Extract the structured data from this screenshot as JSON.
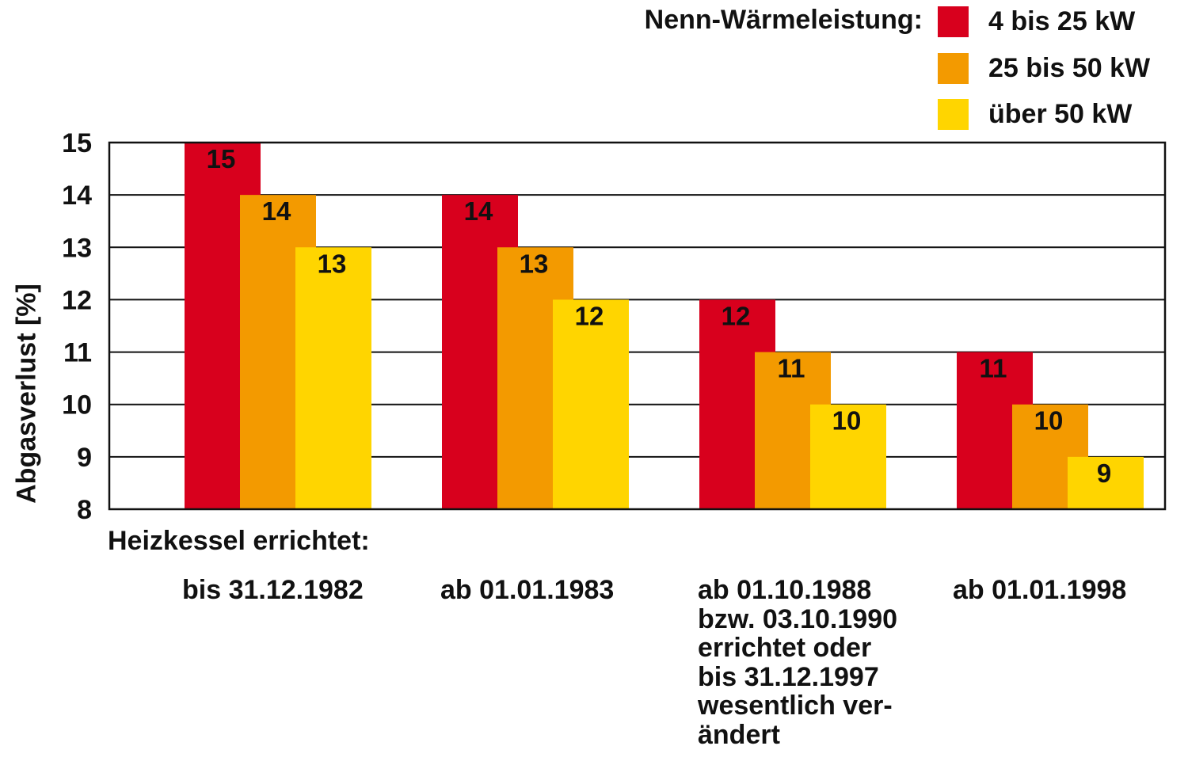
{
  "chart_data": {
    "type": "bar",
    "legend_title": "Nenn-Wärmeleistung:",
    "xlabel": "Heizkessel errichtet:",
    "ylabel": "Abgasverlust [%]",
    "ylim": [
      8,
      15
    ],
    "yticks": [
      "15",
      "14",
      "13",
      "12",
      "11",
      "10",
      "9",
      "8"
    ],
    "grid": true,
    "legend_position": "top-right",
    "categories": [
      "bis 31.12.1982",
      "ab 01.01.1983",
      "ab 01.10.1988\nbzw. 03.10.1990\nerrichtet oder\nbis 31.12.1997\nwesentlich ver-\nändert",
      "ab 01.01.1998"
    ],
    "series": [
      {
        "name": "4 bis 25 kW",
        "color": "#d8001d",
        "values": [
          15,
          14,
          12,
          11
        ]
      },
      {
        "name": "25 bis 50 kW",
        "color": "#f39a00",
        "values": [
          14,
          13,
          11,
          10
        ]
      },
      {
        "name": "über 50 kW",
        "color": "#ffd500",
        "values": [
          13,
          12,
          10,
          9
        ]
      }
    ]
  }
}
